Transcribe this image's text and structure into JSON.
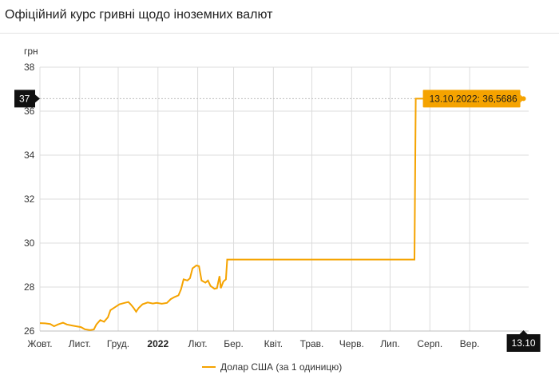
{
  "page": {
    "title": "Офіційний курс гривні щодо іноземних валют"
  },
  "colors": {
    "series": "#f5a300",
    "badge": "#111111",
    "grid": "#dcdcdc",
    "tooltip_bg": "#f5a300"
  },
  "chart_data": {
    "type": "line",
    "ylabel": "грн",
    "ylim": [
      26,
      38
    ],
    "yticks": [
      26,
      28,
      30,
      32,
      34,
      36,
      38
    ],
    "xlim": [
      "2021-10-01",
      "2022-10-17"
    ],
    "xticks": [
      {
        "date": "2021-10-01",
        "label": "Жовт."
      },
      {
        "date": "2021-11-01",
        "label": "Лист."
      },
      {
        "date": "2021-12-01",
        "label": "Груд."
      },
      {
        "date": "2022-01-01",
        "label": "2022",
        "bold": true
      },
      {
        "date": "2022-02-01",
        "label": "Лют."
      },
      {
        "date": "2022-03-01",
        "label": "Бер."
      },
      {
        "date": "2022-04-01",
        "label": "Квіт."
      },
      {
        "date": "2022-05-01",
        "label": "Трав."
      },
      {
        "date": "2022-06-01",
        "label": "Черв."
      },
      {
        "date": "2022-07-01",
        "label": "Лип."
      },
      {
        "date": "2022-08-01",
        "label": "Серп."
      },
      {
        "date": "2022-09-01",
        "label": "Вер."
      }
    ],
    "grid": true,
    "y_badge": {
      "label": "37",
      "value": 36.5686
    },
    "x_badge": {
      "label": "13.10",
      "date": "2022-10-13"
    },
    "tooltip": {
      "text": "13.10.2022: 36,5686",
      "date": "2022-10-13",
      "value": 36.5686
    },
    "legend": {
      "position": "bottom",
      "label": "Долар США (за 1 одиницю)"
    },
    "series": [
      {
        "name": "Долар США (за 1 одиницю)",
        "points": [
          [
            "2021-10-01",
            26.36
          ],
          [
            "2021-10-05",
            26.35
          ],
          [
            "2021-10-09",
            26.32
          ],
          [
            "2021-10-12",
            26.22
          ],
          [
            "2021-10-15",
            26.3
          ],
          [
            "2021-10-19",
            26.38
          ],
          [
            "2021-10-22",
            26.3
          ],
          [
            "2021-10-26",
            26.25
          ],
          [
            "2021-10-29",
            26.22
          ],
          [
            "2021-11-02",
            26.18
          ],
          [
            "2021-11-05",
            26.08
          ],
          [
            "2021-11-09",
            26.04
          ],
          [
            "2021-11-12",
            26.07
          ],
          [
            "2021-11-14",
            26.3
          ],
          [
            "2021-11-17",
            26.5
          ],
          [
            "2021-11-20",
            26.42
          ],
          [
            "2021-11-23",
            26.62
          ],
          [
            "2021-11-25",
            26.95
          ],
          [
            "2021-11-29",
            27.1
          ],
          [
            "2021-12-02",
            27.22
          ],
          [
            "2021-12-06",
            27.28
          ],
          [
            "2021-12-09",
            27.32
          ],
          [
            "2021-12-11",
            27.2
          ],
          [
            "2021-12-13",
            27.05
          ],
          [
            "2021-12-15",
            26.88
          ],
          [
            "2021-12-17",
            27.05
          ],
          [
            "2021-12-20",
            27.22
          ],
          [
            "2021-12-24",
            27.3
          ],
          [
            "2021-12-28",
            27.25
          ],
          [
            "2021-12-31",
            27.28
          ],
          [
            "2022-01-04",
            27.24
          ],
          [
            "2022-01-08",
            27.28
          ],
          [
            "2022-01-11",
            27.45
          ],
          [
            "2022-01-14",
            27.55
          ],
          [
            "2022-01-17",
            27.62
          ],
          [
            "2022-01-19",
            27.9
          ],
          [
            "2022-01-21",
            28.35
          ],
          [
            "2022-01-24",
            28.3
          ],
          [
            "2022-01-26",
            28.4
          ],
          [
            "2022-01-28",
            28.85
          ],
          [
            "2022-01-31",
            28.98
          ],
          [
            "2022-02-02",
            28.95
          ],
          [
            "2022-02-04",
            28.3
          ],
          [
            "2022-02-07",
            28.2
          ],
          [
            "2022-02-09",
            28.3
          ],
          [
            "2022-02-11",
            28.05
          ],
          [
            "2022-02-14",
            27.92
          ],
          [
            "2022-02-16",
            27.95
          ],
          [
            "2022-02-18",
            28.5
          ],
          [
            "2022-02-19",
            27.95
          ],
          [
            "2022-02-21",
            28.25
          ],
          [
            "2022-02-23",
            28.35
          ],
          [
            "2022-02-24",
            29.25
          ],
          [
            "2022-07-20",
            29.25
          ],
          [
            "2022-07-21",
            36.5686
          ],
          [
            "2022-10-13",
            36.5686
          ]
        ]
      }
    ]
  }
}
